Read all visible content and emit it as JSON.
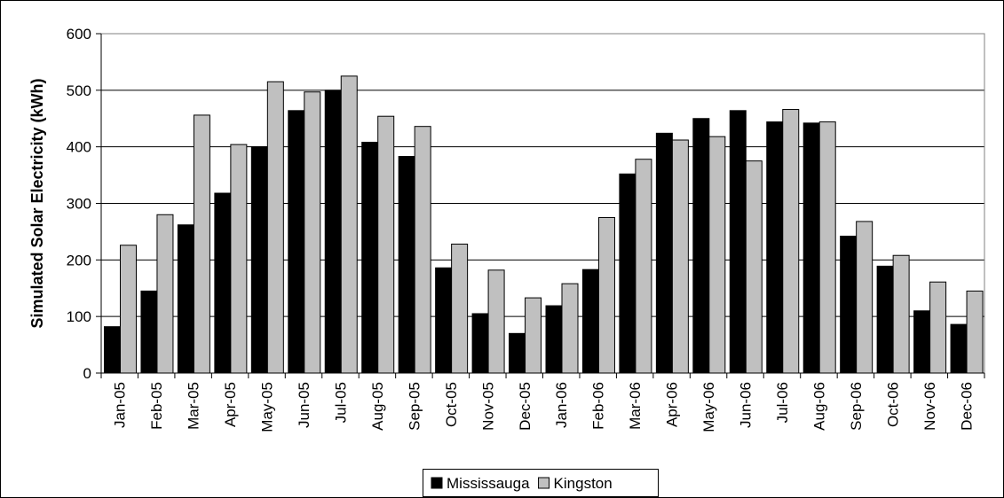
{
  "chart_data": {
    "type": "bar",
    "title": "",
    "xlabel": "",
    "ylabel": "Simulated Solar Electricity (kWh)",
    "ylim": [
      0,
      600
    ],
    "yticks": [
      0,
      100,
      200,
      300,
      400,
      500,
      600
    ],
    "grid": true,
    "legend_position": "bottom",
    "categories": [
      "Jan-05",
      "Feb-05",
      "Mar-05",
      "Apr-05",
      "May-05",
      "Jun-05",
      "Jul-05",
      "Aug-05",
      "Sep-05",
      "Oct-05",
      "Nov-05",
      "Dec-05",
      "Jan-06",
      "Feb-06",
      "Mar-06",
      "Apr-06",
      "May-06",
      "Jun-06",
      "Jul-06",
      "Aug-06",
      "Sep-06",
      "Oct-06",
      "Nov-06",
      "Dec-06"
    ],
    "series": [
      {
        "name": "Mississauga",
        "color": "#000000",
        "values": [
          82,
          145,
          262,
          318,
          400,
          464,
          500,
          408,
          383,
          186,
          105,
          70,
          119,
          183,
          352,
          424,
          450,
          464,
          444,
          442,
          242,
          189,
          110,
          86
        ]
      },
      {
        "name": "Kingston",
        "color": "#c0c0c0",
        "values": [
          226,
          280,
          456,
          404,
          515,
          497,
          525,
          454,
          436,
          228,
          182,
          133,
          158,
          275,
          378,
          412,
          418,
          375,
          466,
          444,
          268,
          208,
          161,
          145
        ]
      }
    ]
  }
}
